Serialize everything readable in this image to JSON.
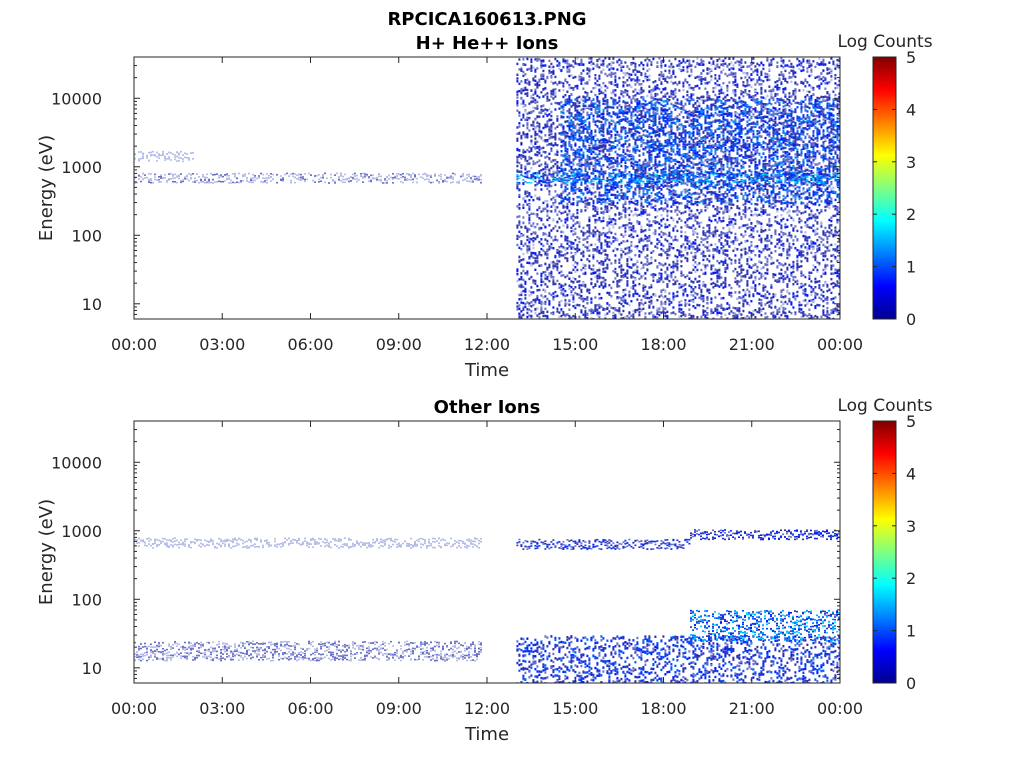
{
  "figure": {
    "title": "RPCICA160613.PNG"
  },
  "chart_data": [
    {
      "type": "heatmap",
      "title": "H+ He++ Ions",
      "xlabel": "Time",
      "ylabel": "Energy (eV)",
      "y_scale": "log",
      "ylim": [
        6,
        40000
      ],
      "xlim": [
        "00:00",
        "24:00"
      ],
      "x_ticks": [
        "00:00",
        "03:00",
        "06:00",
        "09:00",
        "12:00",
        "15:00",
        "18:00",
        "21:00",
        "00:00"
      ],
      "y_ticks": [
        "10",
        "100",
        "1000",
        "10000"
      ],
      "colorbar": {
        "label": "Log Counts",
        "range": [
          0,
          5
        ],
        "ticks": [
          "0",
          "1",
          "2",
          "3",
          "4",
          "5"
        ],
        "colormap": "jet"
      },
      "grid": false,
      "features": [
        {
          "time_start_h": 0.0,
          "time_end_h": 11.8,
          "energy_center_eV": 700,
          "level_log_counts": 0.2,
          "note": "narrow band"
        },
        {
          "time_start_h": 0.0,
          "time_end_h": 2.0,
          "energy_center_eV": 1450,
          "level_log_counts": 0.15
        },
        {
          "time_start_h": 13.0,
          "time_end_h": 24.0,
          "energy_range_eV": [
            6,
            40000
          ],
          "level_log_counts": 0.5,
          "note": "broad population"
        },
        {
          "time_start_h": 14.5,
          "time_end_h": 24.0,
          "energy_range_eV": [
            300,
            10000
          ],
          "level_log_counts": 0.9
        },
        {
          "time_start_h": 13.0,
          "time_end_h": 24.0,
          "energy_center_eV": 700,
          "level_log_counts": 1.2
        }
      ]
    },
    {
      "type": "heatmap",
      "title": "Other Ions",
      "xlabel": "Time",
      "ylabel": "Energy (eV)",
      "y_scale": "log",
      "ylim": [
        6,
        40000
      ],
      "xlim": [
        "00:00",
        "24:00"
      ],
      "x_ticks": [
        "00:00",
        "03:00",
        "06:00",
        "09:00",
        "12:00",
        "15:00",
        "18:00",
        "21:00",
        "00:00"
      ],
      "y_ticks": [
        "10",
        "100",
        "1000",
        "10000"
      ],
      "colorbar": {
        "label": "Log Counts",
        "range": [
          0,
          5
        ],
        "ticks": [
          "0",
          "1",
          "2",
          "3",
          "4",
          "5"
        ],
        "colormap": "jet"
      },
      "grid": false,
      "features": [
        {
          "time_start_h": 0.0,
          "time_end_h": 11.8,
          "energy_range_eV": [
            13,
            25
          ],
          "level_log_counts": 0.25
        },
        {
          "time_start_h": 0.0,
          "time_end_h": 11.8,
          "energy_center_eV": 680,
          "level_log_counts": 0.1
        },
        {
          "time_start_h": 13.0,
          "time_end_h": 24.0,
          "energy_range_eV": [
            6,
            30
          ],
          "level_log_counts": 0.7
        },
        {
          "time_start_h": 13.0,
          "time_end_h": 18.9,
          "energy_center_eV": 650,
          "level_log_counts": 0.6
        },
        {
          "time_start_h": 18.9,
          "time_end_h": 24.0,
          "energy_center_eV": 900,
          "level_log_counts": 0.6
        },
        {
          "time_start_h": 18.9,
          "time_end_h": 24.0,
          "energy_range_eV": [
            25,
            70
          ],
          "level_log_counts": 1.1
        }
      ]
    }
  ]
}
